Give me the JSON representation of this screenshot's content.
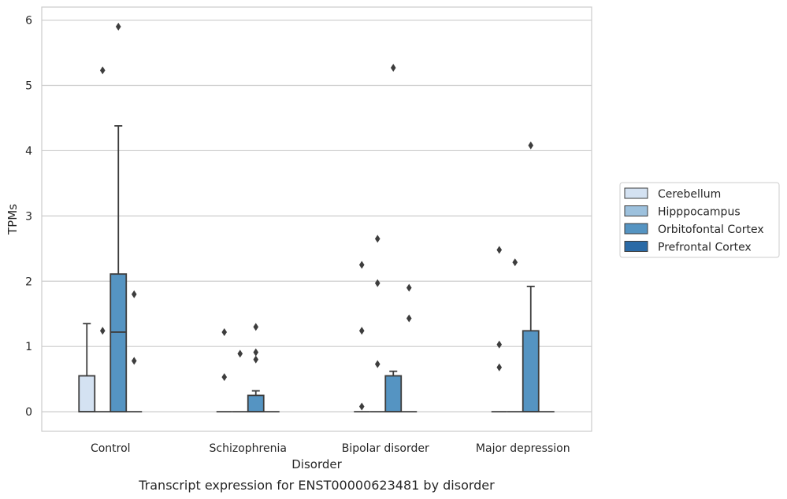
{
  "caption": "Transcript expression for ENST00000623481 by disorder",
  "chart_data": {
    "type": "box",
    "xlabel": "Disorder",
    "ylabel": "TPMs",
    "categories": [
      "Control",
      "Schizophrenia",
      "Bipolar disorder",
      "Major depression"
    ],
    "ylim": [
      -0.3,
      6.2
    ],
    "yticks": [
      "0",
      "1",
      "2",
      "3",
      "4",
      "5",
      "6"
    ],
    "grid": true,
    "legend_position": "right",
    "series": [
      {
        "name": "Cerebellum",
        "color": "#d4e2f2",
        "boxes": [
          {
            "q1": 0,
            "median": 0,
            "q3": 0.55,
            "whisker_low": 0,
            "whisker_high": 1.35,
            "outliers": []
          },
          {
            "q1": 0,
            "median": 0,
            "q3": 0,
            "whisker_low": 0,
            "whisker_high": 0,
            "outliers": [
              1.22,
              0.53
            ]
          },
          {
            "q1": 0,
            "median": 0,
            "q3": 0,
            "whisker_low": 0,
            "whisker_high": 0,
            "outliers": [
              2.25,
              1.24,
              0.08
            ]
          },
          {
            "q1": 0,
            "median": 0,
            "q3": 0,
            "whisker_low": 0,
            "whisker_high": 0,
            "outliers": [
              2.48,
              1.03,
              0.68
            ]
          }
        ]
      },
      {
        "name": "Hipppocampus",
        "color": "#9dc1dd",
        "boxes": [
          {
            "q1": 0,
            "median": 0,
            "q3": 0,
            "whisker_low": 0,
            "whisker_high": 0,
            "outliers": [
              5.23,
              1.24
            ]
          },
          {
            "q1": 0,
            "median": 0,
            "q3": 0,
            "whisker_low": 0,
            "whisker_high": 0,
            "outliers": [
              0.89
            ]
          },
          {
            "q1": 0,
            "median": 0,
            "q3": 0,
            "whisker_low": 0,
            "whisker_high": 0,
            "outliers": [
              2.65,
              1.97,
              0.73
            ]
          },
          {
            "q1": 0,
            "median": 0,
            "q3": 0,
            "whisker_low": 0,
            "whisker_high": 0,
            "outliers": [
              2.29
            ]
          }
        ]
      },
      {
        "name": "Orbitofontal Cortex",
        "color": "#5594c2",
        "boxes": [
          {
            "q1": 0,
            "median": 1.22,
            "q3": 2.11,
            "whisker_low": 0,
            "whisker_high": 4.38,
            "outliers": [
              5.9
            ]
          },
          {
            "q1": 0,
            "median": 0,
            "q3": 0.25,
            "whisker_low": 0,
            "whisker_high": 0.32,
            "outliers": [
              1.3,
              0.91,
              0.8
            ]
          },
          {
            "q1": 0,
            "median": 0,
            "q3": 0.55,
            "whisker_low": 0,
            "whisker_high": 0.62,
            "outliers": [
              5.27
            ]
          },
          {
            "q1": 0,
            "median": 0,
            "q3": 1.24,
            "whisker_low": 0,
            "whisker_high": 1.92,
            "outliers": [
              4.08
            ]
          }
        ]
      },
      {
        "name": "Prefrontal Cortex",
        "color": "#2a6aa6",
        "boxes": [
          {
            "q1": 0,
            "median": 0,
            "q3": 0,
            "whisker_low": 0,
            "whisker_high": 0,
            "outliers": [
              1.8,
              0.78
            ]
          },
          {
            "q1": 0,
            "median": 0,
            "q3": 0,
            "whisker_low": 0,
            "whisker_high": 0,
            "outliers": []
          },
          {
            "q1": 0,
            "median": 0,
            "q3": 0,
            "whisker_low": 0,
            "whisker_high": 0,
            "outliers": [
              1.9,
              1.43
            ]
          },
          {
            "q1": 0,
            "median": 0,
            "q3": 0,
            "whisker_low": 0,
            "whisker_high": 0,
            "outliers": []
          }
        ]
      }
    ]
  }
}
